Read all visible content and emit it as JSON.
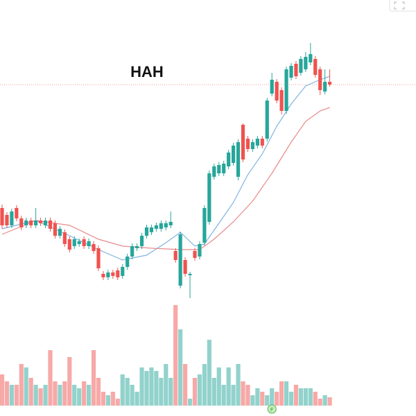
{
  "chart_data": [
    {
      "type": "candlestick",
      "title": "HAH",
      "ylim": [
        0,
        600
      ],
      "up_color": "#26a69a",
      "down_color": "#ef5350",
      "open": [
        300,
        290,
        275,
        300,
        285,
        275,
        282,
        275,
        282,
        275,
        282,
        278,
        260,
        265,
        255,
        245,
        248,
        255,
        245,
        248,
        242,
        205,
        200,
        207,
        210,
        202,
        215,
        230,
        242,
        245,
        260,
        265,
        270,
        270,
        272,
        275,
        238,
        188,
        225,
        203,
        238,
        230,
        250,
        280,
        345,
        350,
        350,
        360,
        365,
        345,
        420,
        400,
        385,
        390,
        400,
        400,
        465,
        482,
        470,
        440,
        488,
        508,
        495,
        500,
        510,
        515,
        500,
        468,
        482
      ],
      "high": [
        305,
        294,
        299,
        304,
        289,
        286,
        286,
        300,
        286,
        286,
        286,
        282,
        274,
        269,
        259,
        259,
        256,
        259,
        256,
        252,
        246,
        209,
        211,
        211,
        214,
        219,
        234,
        249,
        249,
        264,
        276,
        276,
        279,
        282,
        282,
        295,
        242,
        266,
        229,
        208,
        242,
        252,
        304,
        354,
        364,
        366,
        368,
        384,
        394,
        399,
        422,
        404,
        399,
        404,
        404,
        459,
        495,
        486,
        474,
        504,
        509,
        512,
        519,
        525,
        538,
        519,
        504,
        500,
        500
      ],
      "low": [
        270,
        271,
        271,
        281,
        268,
        271,
        271,
        271,
        274,
        271,
        266,
        256,
        256,
        244,
        236,
        241,
        244,
        241,
        241,
        234,
        209,
        196,
        196,
        198,
        196,
        198,
        211,
        226,
        238,
        241,
        256,
        261,
        266,
        266,
        268,
        271,
        221,
        184,
        201,
        170,
        224,
        226,
        246,
        276,
        341,
        346,
        346,
        356,
        361,
        340,
        366,
        381,
        381,
        386,
        386,
        396,
        461,
        451,
        435,
        436,
        484,
        486,
        491,
        496,
        506,
        488,
        463,
        464,
        475
      ],
      "close": [
        275,
        275,
        295,
        285,
        272,
        282,
        275,
        282,
        278,
        282,
        270,
        260,
        270,
        248,
        240,
        255,
        252,
        245,
        252,
        238,
        213,
        200,
        207,
        202,
        200,
        215,
        230,
        245,
        245,
        260,
        272,
        272,
        275,
        278,
        278,
        280,
        225,
        262,
        205,
        205,
        228,
        248,
        300,
        350,
        360,
        362,
        364,
        380,
        390,
        395,
        370,
        385,
        395,
        400,
        390,
        455,
        485,
        455,
        440,
        500,
        505,
        490,
        515,
        518,
        522,
        492,
        470,
        482,
        478
      ],
      "series": [
        {
          "color": "#7fb3e0",
          "x": [
            0,
            7,
            14,
            20,
            25,
            30,
            34,
            37,
            40,
            42,
            45,
            48,
            51,
            54,
            57,
            60,
            63,
            66,
            68
          ],
          "values": [
            270,
            282,
            260,
            240,
            225,
            232,
            250,
            265,
            245,
            248,
            278,
            308,
            348,
            378,
            418,
            450,
            476,
            485,
            490
          ]
        },
        {
          "color": "#e88a8a",
          "x": [
            0,
            7,
            14,
            20,
            25,
            31,
            37,
            41,
            44,
            48,
            52,
            56,
            60,
            63,
            66,
            68
          ],
          "values": [
            262,
            282,
            275,
            255,
            245,
            242,
            240,
            240,
            255,
            280,
            310,
            350,
            395,
            425,
            440,
            445
          ]
        }
      ]
    },
    {
      "type": "volume",
      "ylim": [
        0,
        160
      ],
      "marker": "F",
      "values": [
        45,
        35,
        30,
        30,
        60,
        55,
        40,
        30,
        25,
        30,
        80,
        35,
        30,
        35,
        70,
        30,
        25,
        35,
        30,
        80,
        40,
        20,
        15,
        20,
        10,
        45,
        40,
        30,
        20,
        55,
        50,
        55,
        50,
        40,
        60,
        40,
        145,
        110,
        60,
        10,
        40,
        45,
        60,
        95,
        40,
        55,
        30,
        55,
        30,
        60,
        35,
        30,
        15,
        25,
        20,
        15,
        25,
        20,
        35,
        35,
        20,
        30,
        25,
        25,
        25,
        20,
        10,
        15,
        12
      ]
    }
  ]
}
